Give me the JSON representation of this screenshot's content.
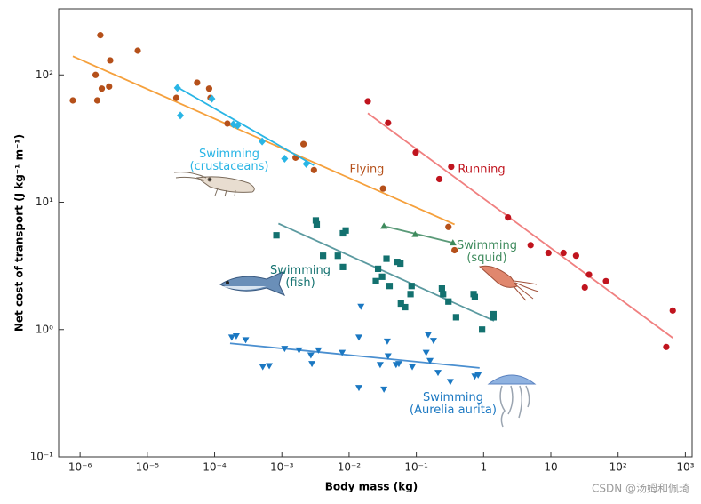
{
  "chart_data": {
    "type": "scatter",
    "xlabel": "Body mass (kg)",
    "ylabel": "Net cost of transport (J kg⁻¹ m⁻¹)",
    "watermark": "CSDN @汤姆和佩琦",
    "log_x": true,
    "log_y": true,
    "xlim": [
      4.8e-07,
      1260
    ],
    "ylim": [
      0.1,
      330
    ],
    "xticks": [
      {
        "value": 1e-06,
        "label": "10⁻⁶"
      },
      {
        "value": 1e-05,
        "label": "10⁻⁵"
      },
      {
        "value": 0.0001,
        "label": "10⁻⁴"
      },
      {
        "value": 0.001,
        "label": "10⁻³"
      },
      {
        "value": 0.01,
        "label": "10⁻²"
      },
      {
        "value": 0.1,
        "label": "10⁻¹"
      },
      1,
      10,
      {
        "value": 100,
        "label": "10²"
      },
      {
        "value": 1000,
        "label": "10³"
      }
    ],
    "yticks": [
      {
        "value": 0.1,
        "label": "10⁻¹"
      },
      {
        "value": 1,
        "label": "10⁰"
      },
      {
        "value": 10,
        "label": "10¹"
      },
      {
        "value": 100,
        "label": "10²"
      }
    ],
    "series": [
      {
        "name": "Flying",
        "color": "#b5501a",
        "line_color": "#f5a03c",
        "marker": "circle",
        "x": [
          7.8e-07,
          2e-06,
          1.7e-06,
          1.8e-06,
          2.1e-06,
          2.7e-06,
          2.8e-06,
          7.2e-06,
          2.7e-05,
          5.5e-05,
          8.3e-05,
          8.7e-05,
          0.000155,
          0.0016,
          0.0021,
          0.003,
          0.032,
          0.3,
          0.37
        ],
        "y": [
          63,
          205,
          100,
          63,
          78,
          81,
          130,
          155,
          66,
          87,
          78,
          66,
          41.5,
          22.4,
          28.6,
          17.9,
          12.8,
          6.4,
          4.2
        ],
        "fit": {
          "x": [
            7.8e-07,
            0.37
          ],
          "y": [
            140,
            6.7
          ]
        }
      },
      {
        "name": "Swimming (crustaceans)",
        "color": "#29b5e5",
        "line_color": "#29b5e5",
        "marker": "diamond",
        "x": [
          2.8e-05,
          3.1e-05,
          9.1e-05,
          0.00019,
          0.00022,
          0.00051,
          0.0011,
          0.0023
        ],
        "y": [
          79,
          48,
          65,
          41,
          40,
          30,
          22,
          20
        ],
        "fit": {
          "x": [
            2.8e-05,
            0.003
          ],
          "y": [
            80,
            19.5
          ]
        }
      },
      {
        "name": "Running",
        "color": "#c0141e",
        "line_color": "#f08080",
        "marker": "circle",
        "x": [
          0.019,
          0.038,
          0.098,
          0.22,
          0.33,
          2.3,
          5.0,
          9.2,
          15.4,
          23.7,
          32,
          37,
          66,
          520,
          650
        ],
        "y": [
          62,
          42,
          24.6,
          15.2,
          19,
          7.6,
          4.6,
          4.0,
          4.0,
          3.8,
          2.14,
          2.7,
          2.4,
          0.73,
          1.41
        ],
        "fit": {
          "x": [
            0.019,
            650
          ],
          "y": [
            50,
            0.86
          ]
        }
      },
      {
        "name": "Swimming (squid)",
        "color": "#3d8a5c",
        "line_color": "#5a9a78",
        "marker": "triangle-up",
        "x": [
          0.033,
          0.096,
          0.35
        ],
        "y": [
          6.5,
          5.6,
          4.8
        ],
        "fit": {
          "x": [
            0.033,
            0.35
          ],
          "y": [
            6.5,
            4.8
          ]
        }
      },
      {
        "name": "Swimming (fish)",
        "color": "#13716f",
        "line_color": "#5b9aa0",
        "marker": "square",
        "x": [
          0.00083,
          0.0032,
          0.0033,
          0.0041,
          0.0068,
          0.0081,
          0.0089,
          0.0081,
          0.027,
          0.036,
          0.052,
          0.058,
          0.025,
          0.031,
          0.04,
          0.059,
          0.068,
          0.085,
          0.082,
          0.24,
          0.25,
          0.3,
          0.39,
          0.71,
          0.74,
          0.95,
          1.4,
          1.4
        ],
        "y": [
          5.5,
          7.2,
          6.7,
          3.8,
          3.8,
          5.7,
          6.0,
          3.1,
          3.0,
          3.6,
          3.4,
          3.3,
          2.4,
          2.6,
          2.2,
          1.6,
          1.5,
          2.2,
          1.9,
          2.1,
          1.9,
          1.66,
          1.25,
          1.9,
          1.8,
          1.0,
          1.32,
          1.25
        ],
        "fit": {
          "x": [
            0.00089,
            1.43
          ],
          "y": [
            6.8,
            1.17
          ]
        }
      },
      {
        "name": "Swimming (Aurelia aurita)",
        "color": "#1b78c2",
        "line_color": "#4a8fd0",
        "marker": "triangle-down",
        "x": [
          0.00018,
          0.00021,
          0.00029,
          0.00052,
          0.00065,
          0.0011,
          0.0018,
          0.0027,
          0.0028,
          0.0035,
          0.0079,
          0.015,
          0.014,
          0.014,
          0.029,
          0.033,
          0.037,
          0.038,
          0.05,
          0.055,
          0.087,
          0.15,
          0.18,
          0.14,
          0.16,
          0.21,
          0.32,
          0.74,
          0.83
        ],
        "y": [
          0.87,
          0.89,
          0.83,
          0.51,
          0.52,
          0.71,
          0.69,
          0.63,
          0.54,
          0.69,
          0.66,
          1.52,
          0.87,
          0.35,
          0.53,
          0.34,
          0.81,
          0.62,
          0.53,
          0.54,
          0.51,
          0.91,
          0.82,
          0.66,
          0.57,
          0.46,
          0.39,
          0.43,
          0.44
        ],
        "fit": {
          "x": [
            0.00017,
            0.87
          ],
          "y": [
            0.78,
            0.5
          ]
        }
      }
    ]
  }
}
